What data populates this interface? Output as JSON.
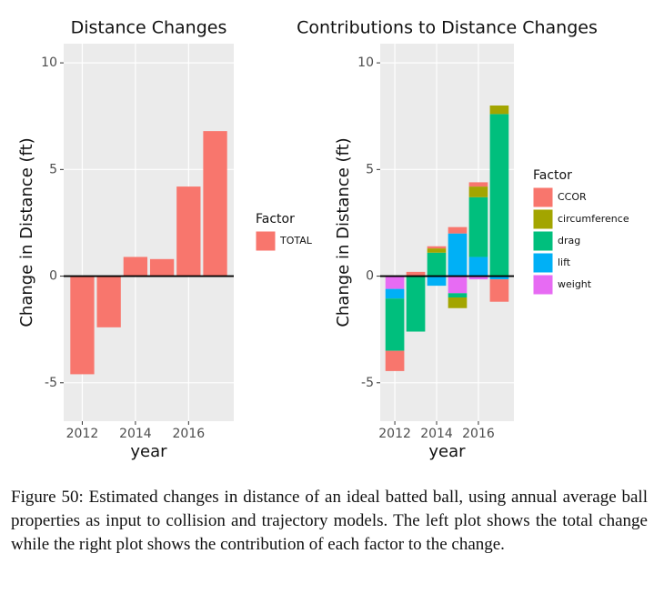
{
  "chart_data": [
    {
      "type": "bar",
      "title": "Distance Changes",
      "x_label": "year",
      "y_label": "Change in Distance (ft)",
      "x": [
        2012,
        2013,
        2014,
        2015,
        2016,
        2017
      ],
      "series": [
        {
          "name": "TOTAL",
          "color": "#F8766D",
          "values": [
            -4.6,
            -2.4,
            0.9,
            0.8,
            4.2,
            6.8
          ]
        }
      ],
      "legend_title": "Factor",
      "xlim": [
        2011.3,
        2017.7
      ],
      "xticks": [
        2012,
        2014,
        2016
      ],
      "ylim": [
        -6.8,
        10.9
      ],
      "yticks": [
        -5,
        0,
        5,
        10
      ],
      "grid": true
    },
    {
      "type": "stacked_bar",
      "title": "Contributions to Distance Changes",
      "x_label": "year",
      "y_label": "Change in Distance (ft)",
      "x": [
        2012,
        2013,
        2014,
        2015,
        2016,
        2017
      ],
      "series": [
        {
          "name": "CCOR",
          "color": "#F8766D",
          "values": [
            -0.95,
            0.2,
            0.1,
            0.3,
            0.2,
            -1.05
          ]
        },
        {
          "name": "circumference",
          "color": "#A3A500",
          "values": [
            0,
            0,
            0.2,
            -0.5,
            0.5,
            0.4
          ]
        },
        {
          "name": "drag",
          "color": "#00BF7D",
          "values": [
            -2.45,
            -2.6,
            1.1,
            -0.2,
            2.8,
            7.6
          ]
        },
        {
          "name": "lift",
          "color": "#00B0F6",
          "values": [
            -0.45,
            0,
            -0.45,
            2.0,
            0.9,
            -0.15
          ]
        },
        {
          "name": "weight",
          "color": "#E76BF3",
          "values": [
            -0.6,
            0,
            0,
            -0.8,
            -0.15,
            0
          ]
        }
      ],
      "legend_title": "Factor",
      "xlim": [
        2011.3,
        2017.7
      ],
      "xticks": [
        2012,
        2014,
        2016
      ],
      "ylim": [
        -6.8,
        10.9
      ],
      "yticks": [
        -5,
        0,
        5,
        10
      ],
      "grid": true
    }
  ],
  "caption": "Figure 50: Estimated changes in distance of an ideal batted ball, using annual average ball properties as input to collision and trajectory models. The left plot shows the total change while the right plot shows the contribution of each factor to the change."
}
